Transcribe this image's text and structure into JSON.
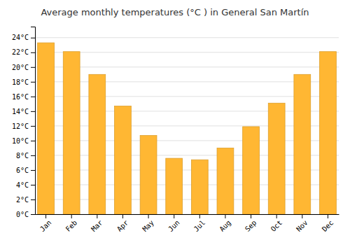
{
  "chart_data": {
    "type": "bar",
    "title": "Average monthly temperatures (°C ) in General San Martín",
    "categories": [
      "Jan",
      "Feb",
      "Mar",
      "Apr",
      "May",
      "Jun",
      "Jul",
      "Aug",
      "Sep",
      "Oct",
      "Nov",
      "Dec"
    ],
    "values": [
      23.3,
      22.1,
      19.0,
      14.7,
      10.7,
      7.6,
      7.4,
      9.0,
      11.9,
      15.1,
      19.0,
      22.1
    ],
    "color": "#FFB733",
    "ylim": [
      0,
      25.5
    ],
    "yticks": [
      {
        "value": 0,
        "label": "0°C"
      },
      {
        "value": 2,
        "label": "2°C"
      },
      {
        "value": 4,
        "label": "4°C"
      },
      {
        "value": 6,
        "label": "6°C"
      },
      {
        "value": 8,
        "label": "8°C"
      },
      {
        "value": 10,
        "label": "10°C"
      },
      {
        "value": 12,
        "label": "12°C"
      },
      {
        "value": 14,
        "label": "14°C"
      },
      {
        "value": 16,
        "label": "16°C"
      },
      {
        "value": 18,
        "label": "18°C"
      },
      {
        "value": 20,
        "label": "20°C"
      },
      {
        "value": 22,
        "label": "22°C"
      },
      {
        "value": 24,
        "label": "24°C"
      }
    ],
    "grid": true
  }
}
